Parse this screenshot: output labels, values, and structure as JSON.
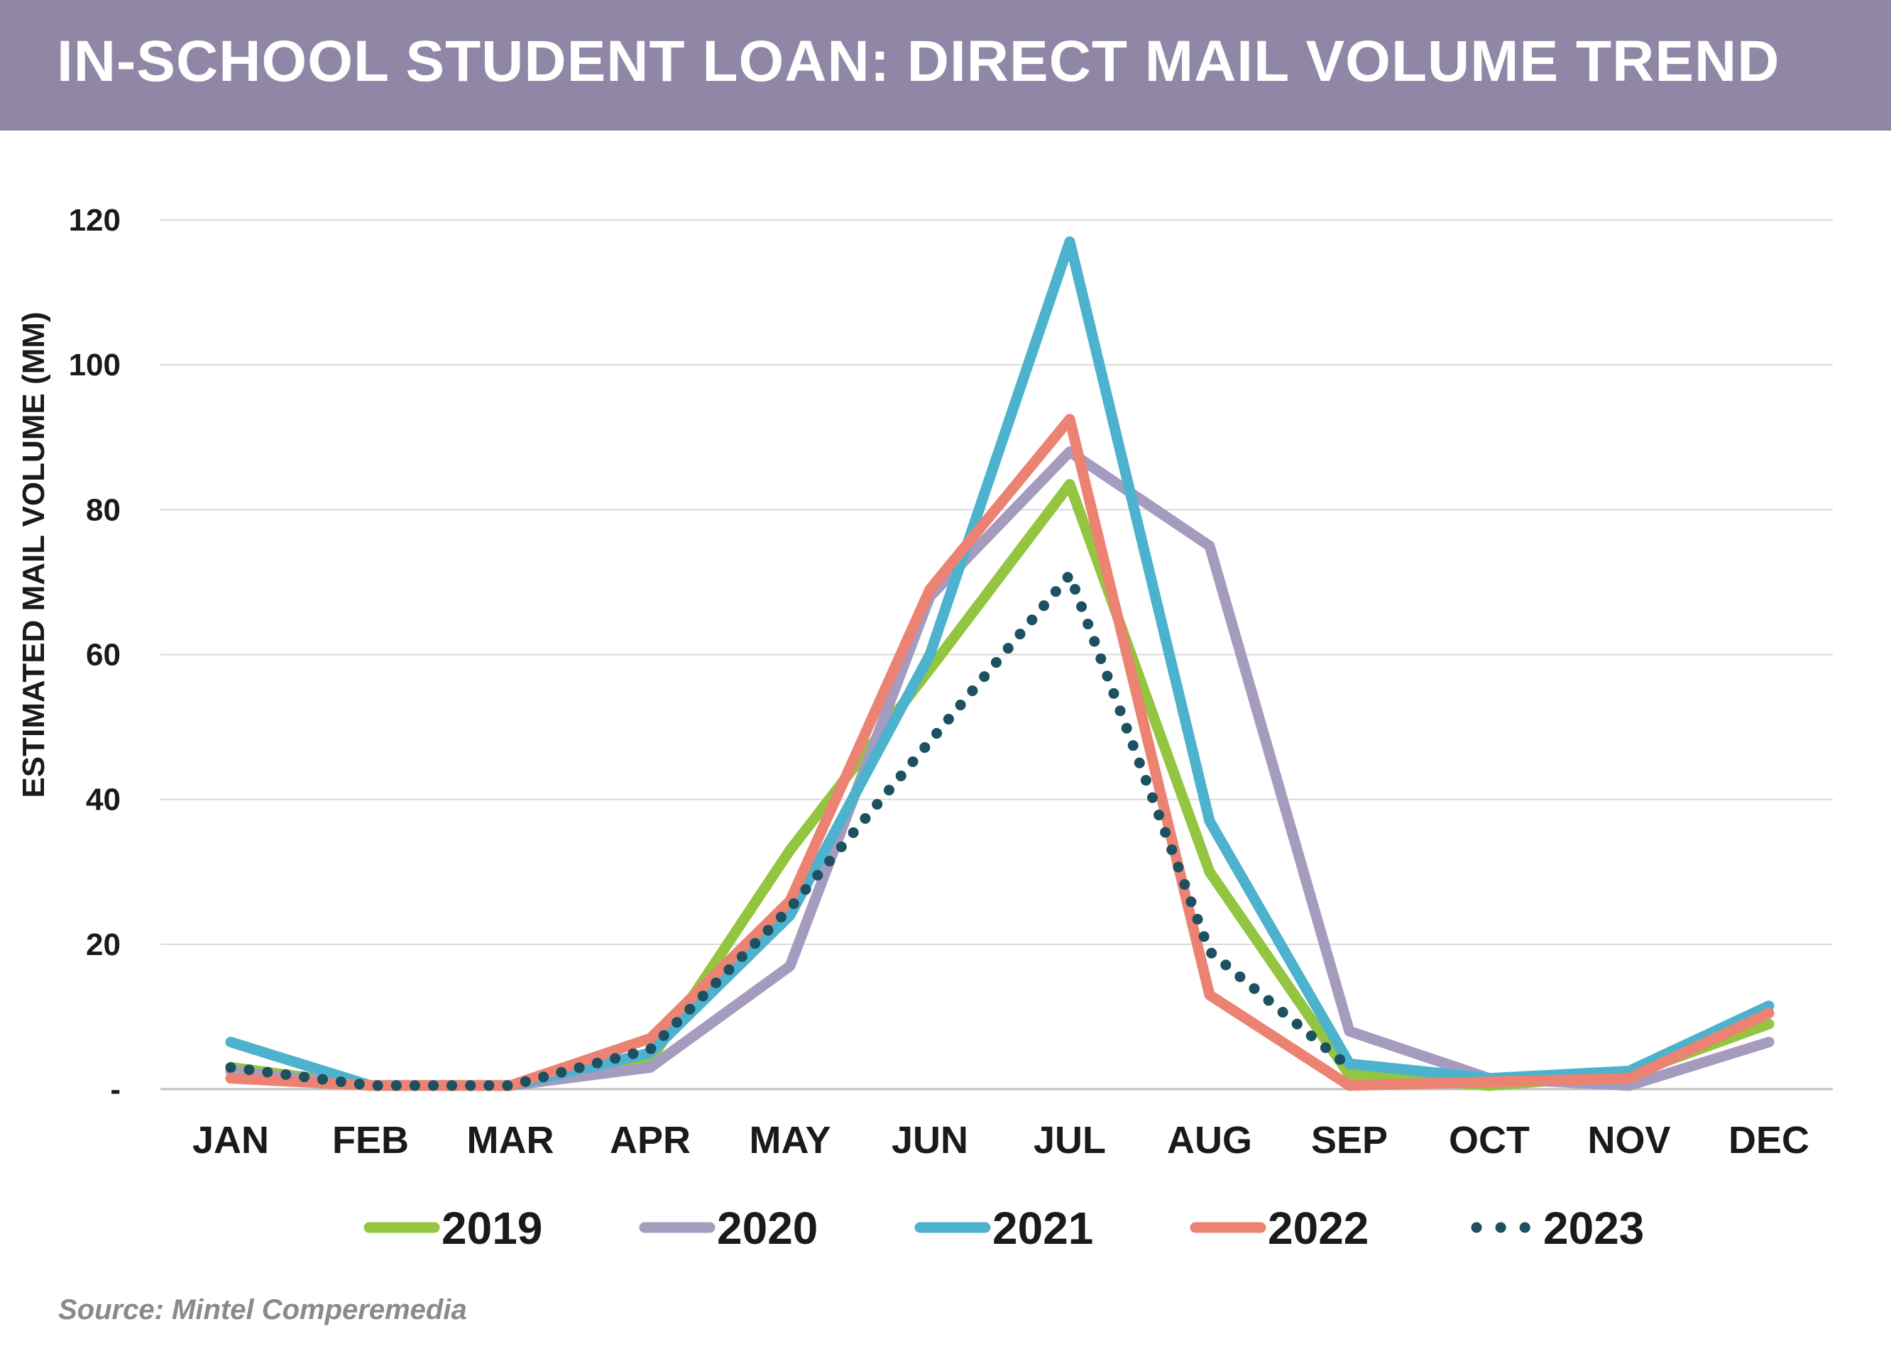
{
  "title": "IN-SCHOOL STUDENT LOAN: DIRECT MAIL VOLUME TREND",
  "source": "Source: Mintel Comperemedia",
  "chart_data": {
    "type": "line",
    "ylabel": "ESTIMATED MAIL VOLUME (MM)",
    "xlabel": "",
    "ylim": [
      0,
      120
    ],
    "yticks": [
      {
        "value": 0,
        "label": "-"
      },
      {
        "value": 20,
        "label": "20"
      },
      {
        "value": 40,
        "label": "40"
      },
      {
        "value": 60,
        "label": "60"
      },
      {
        "value": 80,
        "label": "80"
      },
      {
        "value": 100,
        "label": "100"
      },
      {
        "value": 120,
        "label": "120"
      }
    ],
    "grid": true,
    "legend_position": "bottom",
    "categories": [
      "JAN",
      "FEB",
      "MAR",
      "APR",
      "MAY",
      "JUN",
      "JUL",
      "AUG",
      "SEP",
      "OCT",
      "NOV",
      "DEC"
    ],
    "series": [
      {
        "name": "2019",
        "color": "#93c540",
        "style": "solid",
        "values": [
          3,
          0.5,
          0.5,
          4,
          33,
          58,
          83.5,
          30,
          2,
          0.5,
          2,
          9
        ]
      },
      {
        "name": "2020",
        "color": "#a59bbe",
        "style": "solid",
        "values": [
          2.5,
          0.5,
          0.5,
          3,
          17,
          68,
          88,
          75,
          8,
          1.5,
          0.5,
          6.5
        ]
      },
      {
        "name": "2021",
        "color": "#4db2cd",
        "style": "solid",
        "values": [
          6.5,
          0.5,
          0.5,
          5,
          24,
          60,
          117,
          37,
          3.5,
          1.5,
          2.5,
          11.5
        ]
      },
      {
        "name": "2022",
        "color": "#ec8272",
        "style": "solid",
        "values": [
          1.5,
          0.5,
          0.5,
          7,
          26,
          69,
          92.5,
          13,
          0.5,
          1,
          1.5,
          10.5
        ]
      },
      {
        "name": "2023",
        "color": "#1d5161",
        "style": "dotted",
        "values": [
          3,
          0.5,
          0.5,
          5.5,
          25,
          48,
          71,
          19,
          3,
          null,
          null,
          null
        ]
      }
    ]
  }
}
